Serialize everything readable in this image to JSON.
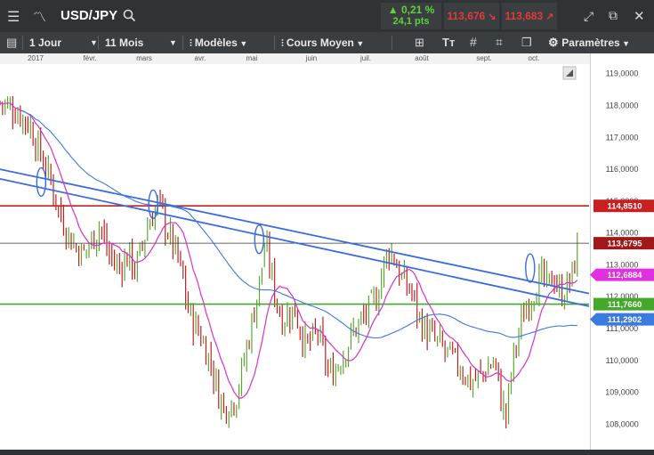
{
  "header": {
    "symbol": "USD/JPY",
    "change_pct": "0,21 %",
    "change_pts": "24,1 pts",
    "bid": "113,676",
    "ask": "113,683"
  },
  "toolbar": {
    "interval": "1 Jour",
    "range": "11 Mois",
    "models_label": "Modèles",
    "price_type": "Cours Moyen",
    "params_label": "Paramètres"
  },
  "colors": {
    "up": "#5ea832",
    "down": "#c02020",
    "trend": "#3b6be0",
    "ma_short": "#d832c8",
    "ma_long": "#3b7be0",
    "resistance": "#c82020",
    "support": "#44a82a"
  },
  "chart_data": {
    "type": "candlestick",
    "instrument": "USD/JPY",
    "x_labels": [
      "2017",
      "févr.",
      "mars",
      "avr.",
      "mai",
      "juin",
      "juil.",
      "août",
      "sept.",
      "oct."
    ],
    "y_ticks": [
      "119,0000",
      "118,0000",
      "117,0000",
      "116,0000",
      "115,0000",
      "114,0000",
      "113,0000",
      "112,0000",
      "111,0000",
      "110,0000",
      "109,0000",
      "108,0000"
    ],
    "y_range": [
      107.2,
      119.3
    ],
    "close_path": [
      [
        0,
        118.1
      ],
      [
        3,
        117.8
      ],
      [
        5,
        117.4
      ],
      [
        7,
        116.4
      ],
      [
        9,
        115.4
      ],
      [
        10,
        114.7
      ],
      [
        12,
        113.8
      ],
      [
        14,
        113.3
      ],
      [
        16,
        113.9
      ],
      [
        17,
        114.3
      ],
      [
        18,
        113.5
      ],
      [
        20,
        112.9
      ],
      [
        22,
        113.3
      ],
      [
        23,
        112.8
      ],
      [
        25,
        114.2
      ],
      [
        26,
        114.6
      ],
      [
        27,
        115.0
      ],
      [
        28,
        114.3
      ],
      [
        30,
        113.3
      ],
      [
        31,
        112.6
      ],
      [
        32,
        111.5
      ],
      [
        34,
        110.8
      ],
      [
        36,
        109.8
      ],
      [
        37,
        109.0
      ],
      [
        38,
        108.5
      ],
      [
        40,
        108.8
      ],
      [
        41,
        109.6
      ],
      [
        42,
        110.5
      ],
      [
        43,
        111.4
      ],
      [
        44,
        112.4
      ],
      [
        45,
        113.6
      ],
      [
        46,
        112.8
      ],
      [
        47,
        111.8
      ],
      [
        48,
        111.3
      ],
      [
        50,
        111.6
      ],
      [
        51,
        111.0
      ],
      [
        52,
        110.4
      ],
      [
        54,
        110.9
      ],
      [
        55,
        110.1
      ],
      [
        56,
        109.5
      ],
      [
        58,
        110.1
      ],
      [
        60,
        110.9
      ],
      [
        62,
        111.4
      ],
      [
        64,
        112.0
      ],
      [
        65,
        112.9
      ],
      [
        66,
        113.5
      ],
      [
        67,
        113.2
      ],
      [
        68,
        112.6
      ],
      [
        70,
        112.1
      ],
      [
        71,
        111.4
      ],
      [
        72,
        111.0
      ],
      [
        74,
        110.6
      ],
      [
        76,
        110.2
      ],
      [
        78,
        109.8
      ],
      [
        80,
        109.3
      ],
      [
        82,
        109.6
      ],
      [
        84,
        110.0
      ],
      [
        85,
        108.8
      ],
      [
        86,
        108.2
      ],
      [
        87,
        110.0
      ],
      [
        88,
        110.8
      ],
      [
        89,
        111.5
      ],
      [
        90,
        112.0
      ],
      [
        92,
        112.6
      ],
      [
        93,
        112.3
      ],
      [
        94,
        112.7
      ],
      [
        95,
        112.1
      ],
      [
        96,
        112.2
      ],
      [
        97,
        112.6
      ],
      [
        98,
        113.4
      ]
    ],
    "lines": {
      "resistance": 114.851,
      "support": 111.766,
      "last_price": 113.6795
    },
    "price_labels": {
      "resistance": "114,8510",
      "last": "113,6795",
      "ma_short": "112,6884",
      "support": "111,7660",
      "ma_long": "111,2902"
    }
  }
}
